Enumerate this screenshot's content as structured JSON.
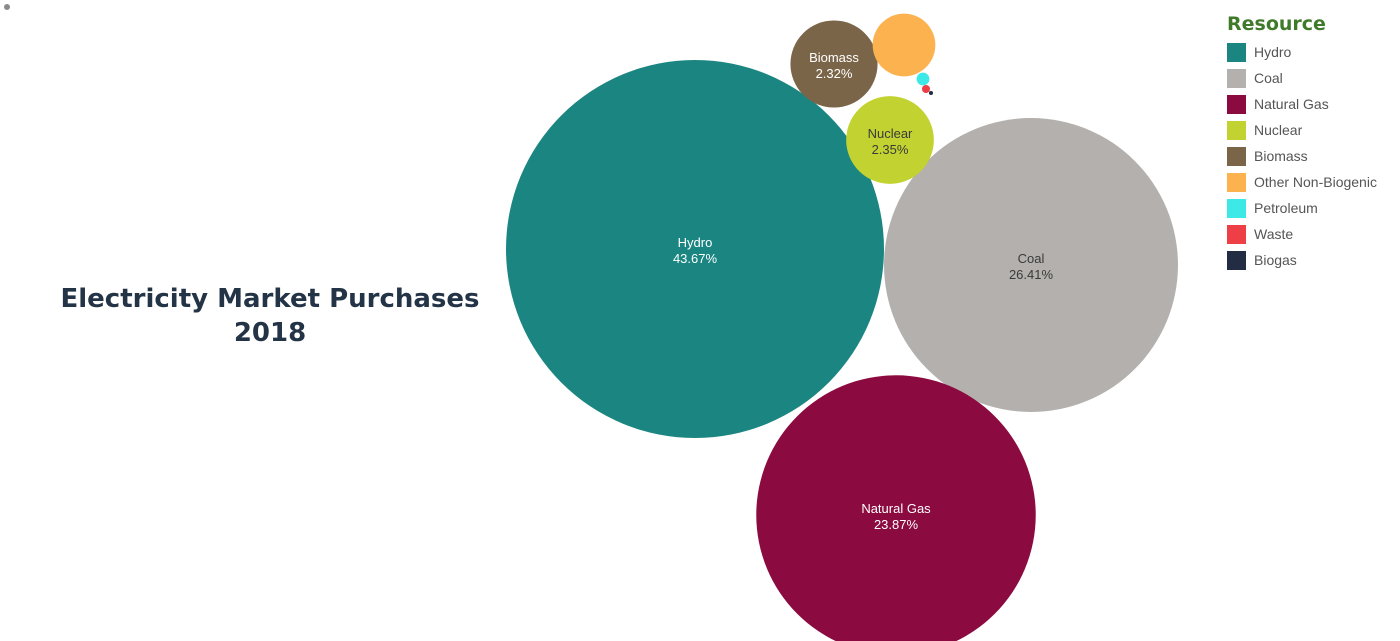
{
  "title": {
    "line1": "Electricity Market Purchases",
    "line2": "2018"
  },
  "legend": {
    "title": "Resource",
    "items": [
      {
        "label": "Hydro",
        "color": "#1b8581"
      },
      {
        "label": "Coal",
        "color": "#b3b0ad"
      },
      {
        "label": "Natural Gas",
        "color": "#8b0a3f"
      },
      {
        "label": "Nuclear",
        "color": "#c2d331"
      },
      {
        "label": "Biomass",
        "color": "#7b6548"
      },
      {
        "label": "Other Non-Biogenic",
        "color": "#fbb24f"
      },
      {
        "label": "Petroleum",
        "color": "#3ce9e6"
      },
      {
        "label": "Waste",
        "color": "#ed3f45"
      },
      {
        "label": "Biogas",
        "color": "#222c42"
      }
    ]
  },
  "chart_data": {
    "type": "bubble",
    "unit": "%",
    "legend_position": "top-right",
    "series": [
      {
        "name": "Hydro",
        "value": 43.67,
        "label": "Hydro",
        "value_label": "43.67%"
      },
      {
        "name": "Coal",
        "value": 26.41,
        "label": "Coal",
        "value_label": "26.41%"
      },
      {
        "name": "Natural Gas",
        "value": 23.87,
        "label": "Natural Gas",
        "value_label": "23.87%"
      },
      {
        "name": "Nuclear",
        "value": 2.35,
        "label": "Nuclear",
        "value_label": "2.35%"
      },
      {
        "name": "Biomass",
        "value": 2.32,
        "label": "Biomass",
        "value_label": "2.32%"
      },
      {
        "name": "Other Non-Biogenic",
        "value": 1.2
      },
      {
        "name": "Petroleum",
        "value": 0.05
      },
      {
        "name": "Waste",
        "value": 0.02
      },
      {
        "name": "Biogas",
        "value": 0.005
      }
    ]
  }
}
